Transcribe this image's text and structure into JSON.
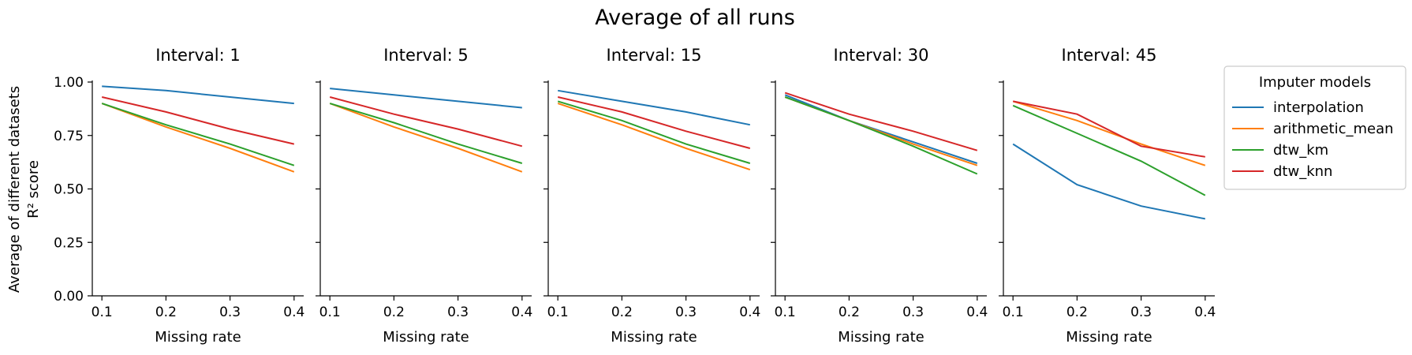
{
  "chart_data": {
    "type": "line",
    "title": "Average of all runs",
    "ylabel_line1": "Average of different datasets",
    "ylabel_line2": "R² score",
    "xlabel": "Missing rate",
    "x": [
      0.1,
      0.2,
      0.3,
      0.4
    ],
    "x_ticks": [
      "0.1",
      "0.2",
      "0.3",
      "0.4"
    ],
    "y_ticks": [
      "0.00",
      "0.25",
      "0.50",
      "0.75",
      "1.00"
    ],
    "ylim": [
      0,
      1.0
    ],
    "xlim": [
      0.085,
      0.415
    ],
    "grid": false,
    "legend": {
      "title": "Imputer models",
      "placement": "outside-top-right"
    },
    "series_colors": {
      "interpolation": "#1f77b4",
      "arithmetic_mean": "#ff7f0e",
      "dtw_km": "#2ca02c",
      "dtw_knn": "#d62728"
    },
    "series_names": [
      "interpolation",
      "arithmetic_mean",
      "dtw_km",
      "dtw_knn"
    ],
    "panels": [
      {
        "title": "Interval: 1",
        "series": [
          {
            "name": "interpolation",
            "values": [
              0.98,
              0.96,
              0.93,
              0.9
            ]
          },
          {
            "name": "arithmetic_mean",
            "values": [
              0.9,
              0.79,
              0.69,
              0.58
            ]
          },
          {
            "name": "dtw_km",
            "values": [
              0.9,
              0.8,
              0.71,
              0.61
            ]
          },
          {
            "name": "dtw_knn",
            "values": [
              0.93,
              0.86,
              0.78,
              0.71
            ]
          }
        ]
      },
      {
        "title": "Interval: 5",
        "series": [
          {
            "name": "interpolation",
            "values": [
              0.97,
              0.94,
              0.91,
              0.88
            ]
          },
          {
            "name": "arithmetic_mean",
            "values": [
              0.9,
              0.79,
              0.69,
              0.58
            ]
          },
          {
            "name": "dtw_km",
            "values": [
              0.9,
              0.81,
              0.71,
              0.62
            ]
          },
          {
            "name": "dtw_knn",
            "values": [
              0.93,
              0.85,
              0.78,
              0.7
            ]
          }
        ]
      },
      {
        "title": "Interval: 15",
        "series": [
          {
            "name": "interpolation",
            "values": [
              0.96,
              0.91,
              0.86,
              0.8
            ]
          },
          {
            "name": "arithmetic_mean",
            "values": [
              0.9,
              0.8,
              0.69,
              0.59
            ]
          },
          {
            "name": "dtw_km",
            "values": [
              0.91,
              0.82,
              0.71,
              0.62
            ]
          },
          {
            "name": "dtw_knn",
            "values": [
              0.93,
              0.86,
              0.77,
              0.69
            ]
          }
        ]
      },
      {
        "title": "Interval: 30",
        "series": [
          {
            "name": "interpolation",
            "values": [
              0.94,
              0.82,
              0.72,
              0.62
            ]
          },
          {
            "name": "arithmetic_mean",
            "values": [
              0.93,
              0.82,
              0.71,
              0.61
            ]
          },
          {
            "name": "dtw_km",
            "values": [
              0.93,
              0.82,
              0.7,
              0.57
            ]
          },
          {
            "name": "dtw_knn",
            "values": [
              0.95,
              0.85,
              0.77,
              0.68
            ]
          }
        ]
      },
      {
        "title": "Interval: 45",
        "series": [
          {
            "name": "interpolation",
            "values": [
              0.71,
              0.52,
              0.42,
              0.36
            ]
          },
          {
            "name": "arithmetic_mean",
            "values": [
              0.91,
              0.82,
              0.71,
              0.61
            ]
          },
          {
            "name": "dtw_km",
            "values": [
              0.89,
              0.76,
              0.63,
              0.47
            ]
          },
          {
            "name": "dtw_knn",
            "values": [
              0.91,
              0.85,
              0.7,
              0.65
            ]
          }
        ]
      }
    ]
  }
}
